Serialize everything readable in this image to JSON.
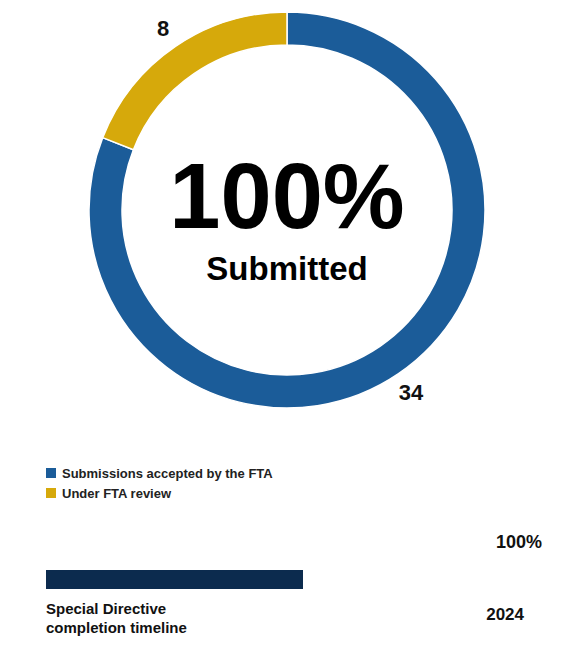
{
  "chart_data": [
    {
      "type": "donut",
      "categories": [
        "Submissions accepted by the FTA",
        "Under FTA review"
      ],
      "values": [
        34,
        8
      ],
      "colors": [
        "#1b5c99",
        "#d6a90b"
      ],
      "data_labels": true,
      "legend": "bottom-left",
      "annotations": [
        "100%",
        "Submitted"
      ]
    },
    {
      "type": "progress",
      "title": "Special Directive completion timeline",
      "values": [
        100
      ],
      "value_labels": [
        "100%"
      ],
      "xlim": [
        0,
        100
      ],
      "color": "#0c2b4e",
      "tick_labels": false,
      "annotations": [
        "2024"
      ]
    }
  ]
}
